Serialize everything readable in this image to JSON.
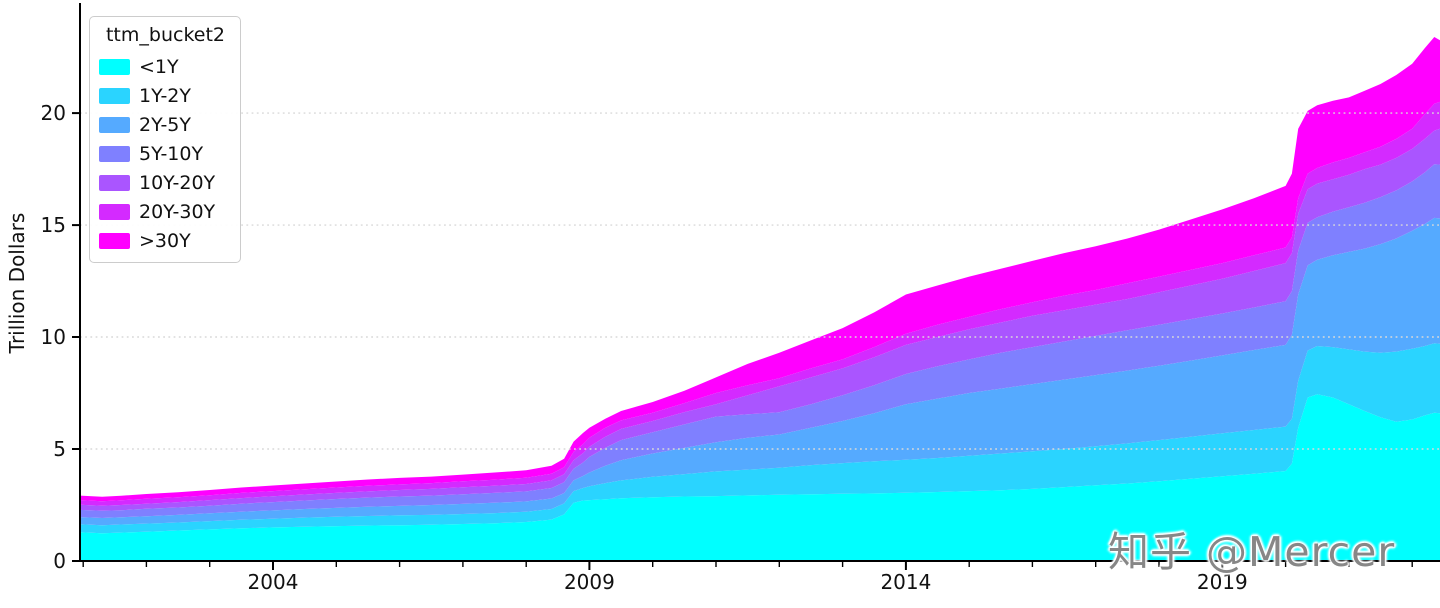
{
  "figure": {
    "watermark": "知乎 @Mercer",
    "background_color": "#ffffff"
  },
  "legend": {
    "title": "ttm_bucket2",
    "position": "upper left",
    "items": [
      {
        "label": "<1Y",
        "color": "#00FFFF"
      },
      {
        "label": "1Y-2Y",
        "color": "#2AD4FF"
      },
      {
        "label": "2Y-5Y",
        "color": "#55AAFF"
      },
      {
        "label": "5Y-10Y",
        "color": "#7F80FF"
      },
      {
        "label": "10Y-20Y",
        "color": "#AA55FF"
      },
      {
        "label": "20Y-30Y",
        "color": "#D42AFF"
      },
      {
        "label": ">30Y",
        "color": "#FF00FF"
      }
    ]
  },
  "axes": {
    "y_label": "Trillion Dollars",
    "y_ticks": [
      0,
      5,
      10,
      15,
      20
    ],
    "y_tick_labels": [
      "0",
      "5",
      "10",
      "15",
      "20"
    ],
    "x_ticks": [
      2004,
      2009,
      2014,
      2019
    ],
    "x_tick_labels": [
      "2004",
      "2009",
      "2014",
      "2019"
    ],
    "x_minor_ticks": [
      2001,
      2002,
      2003,
      2004,
      2005,
      2006,
      2007,
      2008,
      2009,
      2010,
      2011,
      2012,
      2013,
      2014,
      2015,
      2016,
      2017,
      2018,
      2019,
      2020,
      2021,
      2022
    ],
    "grid": "dotted-horizontal",
    "grid_color": "#d9d9d9",
    "spine_color": "#000000"
  },
  "chart_data": {
    "type": "area",
    "stacked": true,
    "title": "",
    "xlabel": "",
    "ylabel": "Trillion Dollars",
    "xlim": [
      2000.95,
      2022.44
    ],
    "ylim": [
      0,
      25.05
    ],
    "legend_position": "upper left",
    "values_are_cumulative": true,
    "x": [
      2000.95,
      2001.3,
      2001.6,
      2002.0,
      2002.5,
      2003.0,
      2003.5,
      2004.0,
      2004.5,
      2005.0,
      2005.5,
      2006.0,
      2006.5,
      2007.0,
      2007.5,
      2008.0,
      2008.4,
      2008.6,
      2008.75,
      2008.9,
      2009.0,
      2009.25,
      2009.5,
      2010.0,
      2010.5,
      2011.0,
      2011.5,
      2012.0,
      2012.5,
      2013.0,
      2013.5,
      2014.0,
      2014.5,
      2015.0,
      2015.5,
      2016.0,
      2016.5,
      2017.0,
      2017.5,
      2018.0,
      2018.5,
      2019.0,
      2019.5,
      2020.0,
      2020.1,
      2020.2,
      2020.35,
      2020.5,
      2020.75,
      2021.0,
      2021.25,
      2021.5,
      2021.75,
      2022.0,
      2022.2,
      2022.35,
      2022.44
    ],
    "series": [
      {
        "name": "<1Y",
        "color": "#00FFFF",
        "cumulative": [
          1.28,
          1.24,
          1.27,
          1.31,
          1.36,
          1.41,
          1.46,
          1.5,
          1.53,
          1.56,
          1.58,
          1.6,
          1.62,
          1.65,
          1.69,
          1.74,
          1.85,
          2.08,
          2.6,
          2.7,
          2.72,
          2.76,
          2.8,
          2.85,
          2.88,
          2.9,
          2.93,
          2.96,
          2.98,
          3.0,
          3.02,
          3.05,
          3.08,
          3.12,
          3.16,
          3.22,
          3.3,
          3.38,
          3.46,
          3.56,
          3.67,
          3.78,
          3.9,
          4.02,
          4.35,
          5.95,
          7.3,
          7.45,
          7.3,
          7.0,
          6.7,
          6.42,
          6.22,
          6.32,
          6.5,
          6.62,
          6.6
        ]
      },
      {
        "name": "1Y-2Y",
        "color": "#2AD4FF",
        "cumulative": [
          1.64,
          1.6,
          1.63,
          1.67,
          1.72,
          1.78,
          1.84,
          1.89,
          1.94,
          1.98,
          2.01,
          2.04,
          2.06,
          2.1,
          2.14,
          2.2,
          2.32,
          2.57,
          3.12,
          3.26,
          3.34,
          3.48,
          3.6,
          3.76,
          3.88,
          4.0,
          4.08,
          4.16,
          4.28,
          4.37,
          4.45,
          4.52,
          4.6,
          4.7,
          4.8,
          4.9,
          5.0,
          5.12,
          5.25,
          5.4,
          5.55,
          5.7,
          5.85,
          6.0,
          6.35,
          8.05,
          9.4,
          9.6,
          9.55,
          9.45,
          9.35,
          9.3,
          9.35,
          9.48,
          9.6,
          9.72,
          9.7
        ]
      },
      {
        "name": "2Y-5Y",
        "color": "#55AAFF",
        "cumulative": [
          1.96,
          1.92,
          1.95,
          2.0,
          2.06,
          2.13,
          2.2,
          2.26,
          2.32,
          2.37,
          2.42,
          2.46,
          2.5,
          2.55,
          2.6,
          2.66,
          2.79,
          3.03,
          3.6,
          3.8,
          3.95,
          4.25,
          4.5,
          4.8,
          5.05,
          5.3,
          5.5,
          5.65,
          5.95,
          6.25,
          6.6,
          7.0,
          7.25,
          7.5,
          7.7,
          7.9,
          8.1,
          8.3,
          8.5,
          8.72,
          8.95,
          9.18,
          9.42,
          9.65,
          10.1,
          11.9,
          13.2,
          13.45,
          13.65,
          13.8,
          13.95,
          14.15,
          14.4,
          14.75,
          15.05,
          15.32,
          15.3
        ]
      },
      {
        "name": "5Y-10Y",
        "color": "#7F80FF",
        "cumulative": [
          2.28,
          2.24,
          2.27,
          2.33,
          2.39,
          2.47,
          2.56,
          2.63,
          2.7,
          2.77,
          2.83,
          2.88,
          2.92,
          2.98,
          3.04,
          3.11,
          3.26,
          3.52,
          4.12,
          4.4,
          4.65,
          5.05,
          5.4,
          5.75,
          6.1,
          6.45,
          6.55,
          6.64,
          7.0,
          7.4,
          7.85,
          8.35,
          8.7,
          9.0,
          9.3,
          9.55,
          9.8,
          10.05,
          10.3,
          10.55,
          10.8,
          11.05,
          11.32,
          11.6,
          12.05,
          13.85,
          15.1,
          15.35,
          15.6,
          15.8,
          16.0,
          16.25,
          16.55,
          16.95,
          17.35,
          17.72,
          17.7
        ]
      },
      {
        "name": "10Y-20Y",
        "color": "#AA55FF",
        "cumulative": [
          2.51,
          2.47,
          2.5,
          2.56,
          2.63,
          2.72,
          2.81,
          2.89,
          2.97,
          3.04,
          3.11,
          3.17,
          3.22,
          3.29,
          3.36,
          3.44,
          3.6,
          3.87,
          4.5,
          4.82,
          5.1,
          5.55,
          5.9,
          6.25,
          6.65,
          7.0,
          7.4,
          7.8,
          8.2,
          8.6,
          9.1,
          9.65,
          10.0,
          10.35,
          10.65,
          10.95,
          11.2,
          11.45,
          11.7,
          12.0,
          12.3,
          12.6,
          12.95,
          13.3,
          13.75,
          15.5,
          16.6,
          16.85,
          17.05,
          17.25,
          17.5,
          17.7,
          18.0,
          18.4,
          18.85,
          19.22,
          19.3
        ]
      },
      {
        "name": "20Y-30Y",
        "color": "#D42AFF",
        "cumulative": [
          2.72,
          2.67,
          2.71,
          2.78,
          2.85,
          2.94,
          3.04,
          3.12,
          3.2,
          3.28,
          3.36,
          3.42,
          3.48,
          3.56,
          3.63,
          3.72,
          3.9,
          4.19,
          4.87,
          5.22,
          5.5,
          5.95,
          6.28,
          6.62,
          7.05,
          7.5,
          7.85,
          8.16,
          8.6,
          9.0,
          9.55,
          10.15,
          10.55,
          10.9,
          11.25,
          11.55,
          11.85,
          12.1,
          12.4,
          12.7,
          13.0,
          13.3,
          13.65,
          14.0,
          14.45,
          16.2,
          17.3,
          17.55,
          17.8,
          18.0,
          18.25,
          18.5,
          18.85,
          19.3,
          19.95,
          20.42,
          20.5
        ]
      },
      {
        "name": ">30Y",
        "color": "#FF00FF",
        "cumulative": [
          2.92,
          2.87,
          2.91,
          2.99,
          3.07,
          3.17,
          3.28,
          3.37,
          3.46,
          3.55,
          3.64,
          3.71,
          3.77,
          3.86,
          3.95,
          4.05,
          4.25,
          4.57,
          5.33,
          5.72,
          5.95,
          6.35,
          6.7,
          7.1,
          7.6,
          8.2,
          8.8,
          9.3,
          9.85,
          10.4,
          11.1,
          11.9,
          12.3,
          12.7,
          13.05,
          13.4,
          13.75,
          14.05,
          14.4,
          14.8,
          15.25,
          15.7,
          16.2,
          16.75,
          17.3,
          19.3,
          20.1,
          20.35,
          20.55,
          20.7,
          21.0,
          21.3,
          21.7,
          22.2,
          22.9,
          23.4,
          23.25
        ]
      }
    ]
  }
}
